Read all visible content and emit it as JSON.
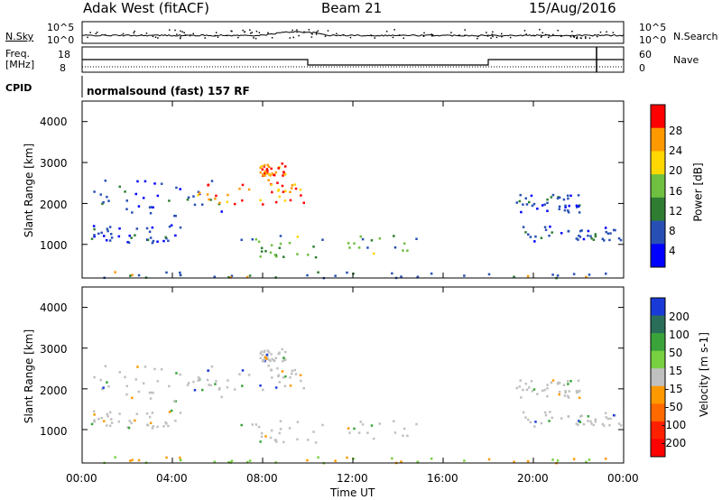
{
  "header": {
    "station": "Adak West (fitACF)",
    "beam": "Beam 21",
    "date": "15/Aug/2016"
  },
  "panels": {
    "nsky_label": "N.Sky",
    "nsearch_label": "N.Search",
    "freq_label_1": "Freq.",
    "freq_label_2": "[MHz]",
    "nave_label": "Nave",
    "cpid_label": "CPID",
    "cpid_text": "normalsound (fast) 157 RF",
    "noise_left_ticks": [
      "10^5",
      "10^0"
    ],
    "noise_right_ticks": [
      "10^5",
      "10^0"
    ],
    "freq_ticks": [
      "18",
      "8"
    ],
    "nave_ticks": [
      "60",
      "0"
    ]
  },
  "chart_data": [
    {
      "type": "heatmap",
      "title": "Power",
      "ylabel": "Slant Range [km]",
      "xlabel": "Time UT",
      "ylim": [
        180,
        4500
      ],
      "xlim": [
        "00:00",
        "24:00"
      ],
      "yticks": [
        "4000",
        "3000",
        "2000",
        "1000"
      ],
      "colorbar": {
        "label": "Power [dB]",
        "ticks": [
          "28",
          "24",
          "20",
          "16",
          "12",
          "8",
          "4"
        ],
        "colors": [
          "#0000ff",
          "#2850b4",
          "#2e7d32",
          "#6fbf40",
          "#ffd700",
          "#ff9900",
          "#ff0000"
        ]
      },
      "features": [
        {
          "t0": 0.3,
          "t1": 6.2,
          "r0": 1700,
          "r1": 2600,
          "level": "weak"
        },
        {
          "t0": 5.0,
          "t1": 9.8,
          "r0": 2000,
          "r1": 2600,
          "level": "strong"
        },
        {
          "t0": 7.8,
          "t1": 9.0,
          "r0": 2700,
          "r1": 3000,
          "level": "strong"
        },
        {
          "t0": 0.2,
          "t1": 4.5,
          "r0": 1050,
          "r1": 1500,
          "level": "weak"
        },
        {
          "t0": 7.0,
          "t1": 14.8,
          "r0": 700,
          "r1": 1250,
          "level": "medium"
        },
        {
          "t0": 19.2,
          "t1": 22.0,
          "r0": 1800,
          "r1": 2300,
          "level": "weak"
        },
        {
          "t0": 19.5,
          "t1": 24.0,
          "r0": 1100,
          "r1": 1500,
          "level": "weak"
        },
        {
          "t0": 0.0,
          "t1": 24.0,
          "r0": 200,
          "r1": 350,
          "level": "ground"
        }
      ]
    },
    {
      "type": "heatmap",
      "title": "Velocity",
      "ylabel": "Slant Range [km]",
      "xlabel": "Time UT",
      "ylim": [
        180,
        4500
      ],
      "xlim": [
        "00:00",
        "24:00"
      ],
      "yticks": [
        "4000",
        "3000",
        "2000",
        "1000"
      ],
      "xticks": [
        "00:00",
        "04:00",
        "08:00",
        "12:00",
        "16:00",
        "20:00",
        "00:00"
      ],
      "colorbar": {
        "label": "Velocity [m s-1]",
        "ticks": [
          "200",
          "100",
          "50",
          "15",
          "-15",
          "-50",
          "-100",
          "-200"
        ],
        "colors": [
          "#1a3ad8",
          "#2a6e5a",
          "#3aa43a",
          "#77d040",
          "#c0c0c0",
          "#ff9900",
          "#ff6a00",
          "#ff2000",
          "#ff0000"
        ]
      }
    }
  ]
}
